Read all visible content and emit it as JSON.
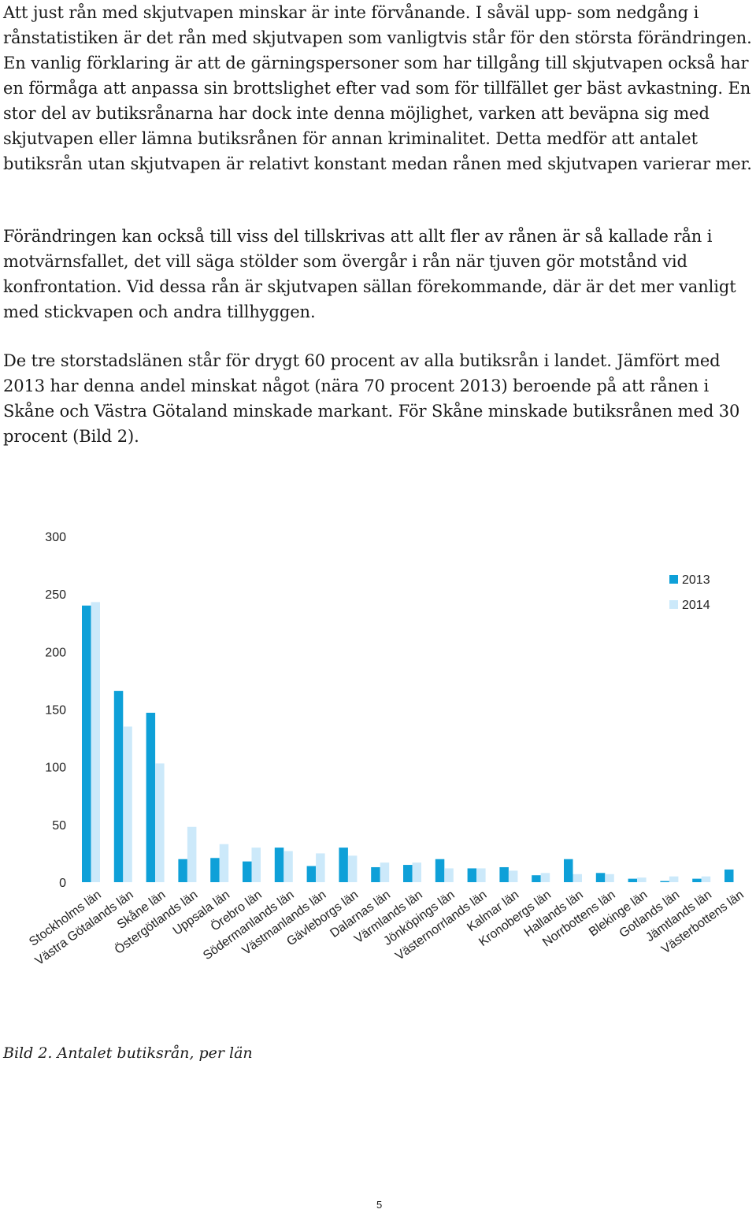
{
  "paragraphs": [
    "Att just rån med skjutvapen minskar är inte förvånande. I såväl upp- som nedgång i rånstatistiken är det rån med skjutvapen som vanligtvis står för den största förändringen. En vanlig förklaring är att de gärningspersoner som har tillgång till skjutvapen också har en förmåga att anpassa sin brottslighet efter vad som för tillfället ger bäst avkastning. En stor del av butiksrånarna har dock inte denna möjlighet, varken att beväpna sig med skjutvapen eller lämna butiksrånen för annan kriminalitet. Detta medför att antalet butiksrån utan skjutvapen är relativt konstant medan rånen med skjutvapen varierar mer.",
    "Förändringen kan också till viss del tillskrivas att allt fler av rånen är så kallade rån i motvärnsfallet, det vill säga stölder som övergår i rån när tjuven gör motstånd vid konfrontation. Vid dessa rån är skjutvapen sällan förekommande, där är det mer vanligt med stickvapen och andra tillhyggen.",
    "De tre storstadslänen står för drygt 60 procent av alla butiksrån i landet. Jämfört med 2013 har denna andel minskat något (nära 70 procent 2013) beroende på att rånen i Skåne och Västra Götaland minskade markant. För Skåne minskade butiksrånen med 30 procent (Bild 2)."
  ],
  "chart_data": {
    "type": "bar",
    "categories": [
      "Stockholms län",
      "Västra Götalands län",
      "Skåne län",
      "Östergötlands län",
      "Uppsala län",
      "Örebro län",
      "Södermanlands län",
      "Västmanlands län",
      "Gävleborgs län",
      "Dalarnas län",
      "Värmlands län",
      "Jönköpings län",
      "Västernorrlands län",
      "Kalmar län",
      "Kronobergs län",
      "Hallands län",
      "Norrbottens län",
      "Blekinge län",
      "Gotlands län",
      "Jämtlands län",
      "Västerbottens län"
    ],
    "series": [
      {
        "name": "2013",
        "color": "#0ea0d8",
        "values": [
          240,
          166,
          147,
          20,
          21,
          18,
          30,
          14,
          30,
          13,
          15,
          20,
          12,
          13,
          6,
          20,
          8,
          3,
          1,
          3,
          11
        ]
      },
      {
        "name": "2014",
        "color": "#cce9fa",
        "values": [
          243,
          135,
          103,
          48,
          33,
          30,
          27,
          25,
          23,
          17,
          17,
          12,
          12,
          10,
          8,
          7,
          7,
          4,
          5,
          5,
          0
        ]
      }
    ],
    "yticks": [
      "300",
      "250",
      "200",
      "150",
      "100",
      "50",
      "0"
    ],
    "ylim": [
      0,
      300
    ],
    "grid": false,
    "legend_position": "top-right",
    "title": "",
    "xlabel": "",
    "ylabel": ""
  },
  "caption": "Bild 2. Antalet butiksrån, per län",
  "page_number": "5"
}
